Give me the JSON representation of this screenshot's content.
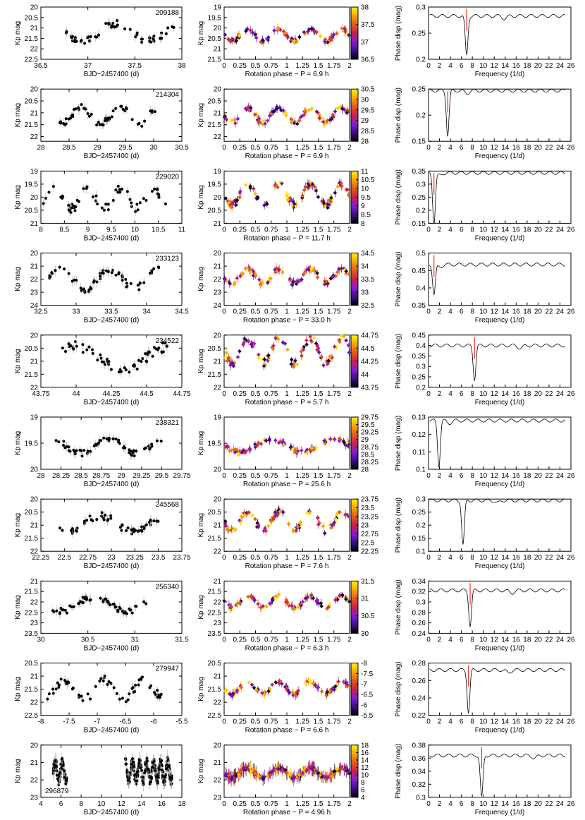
{
  "figure": {
    "colorbar_gradient": [
      "#000000",
      "#3b0f8c",
      "#8a1ad6",
      "#c8214a",
      "#e35b1a",
      "#f7a600",
      "#fff200"
    ],
    "panel_colors": {
      "curve": "#000000",
      "marker_line": "#ff0000",
      "dot": "#000000",
      "errorbar": "#aaaaaa"
    }
  },
  "chart_data": [
    {
      "type": "scatter",
      "label": "209188",
      "lc": {
        "xlabel": "BJD−2457400 (d)",
        "ylabel": "Kp mag",
        "xlim": [
          36.5,
          38
        ],
        "ylim": [
          22.5,
          20
        ],
        "xticks": [
          "36.5",
          "37",
          "37.5",
          "38"
        ],
        "yticks": [
          "20",
          "20.5",
          "21",
          "21.5",
          "22",
          "22.5"
        ],
        "xrange": [
          36.77,
          37.93
        ],
        "yrange": [
          20.6,
          21.8
        ]
      },
      "phase": {
        "xlabel": "Rotation phase − P = 6.9 h",
        "ylabel": "Kp mag",
        "ylim": [
          21.5,
          19
        ],
        "yticks": [
          "19",
          "19.5",
          "20",
          "20.5",
          "21",
          "21.5"
        ],
        "cbar": [
          "36.5",
          "37",
          "37.5",
          "38"
        ],
        "base": 20.35,
        "amp": 0.35
      },
      "pg": {
        "xlabel": "Frequency (1/d)",
        "ylabel": "Phase disp (mag)",
        "ylim": [
          0.2,
          0.3
        ],
        "yticks": [
          "0.2",
          "0.25",
          "0.3"
        ],
        "base": 0.283,
        "dip": 6.95,
        "depth": 0.075,
        "marker": 6.95
      }
    },
    {
      "type": "scatter",
      "label": "214304",
      "lc": {
        "xlabel": "BJD−2457400 (d)",
        "ylabel": "Kp mag",
        "xlim": [
          28,
          30.5
        ],
        "ylim": [
          22.2,
          20
        ],
        "xticks": [
          "28",
          "28.5",
          "29",
          "29.5",
          "30",
          "30.5"
        ],
        "yticks": [
          "20",
          "20.5",
          "21",
          "21.5",
          "22"
        ],
        "xrange": [
          28.3,
          30.05
        ],
        "yrange": [
          20.6,
          21.6
        ]
      },
      "phase": {
        "xlabel": "Rotation phase − P = 6.9 h",
        "ylabel": "Kp mag",
        "ylim": [
          22.2,
          20
        ],
        "yticks": [
          "20",
          "20.5",
          "21",
          "21.5",
          "22"
        ],
        "cbar": [
          "28",
          "28.5",
          "29",
          "29.5",
          "30",
          "30.5"
        ],
        "base": 21.1,
        "amp": 0.4
      },
      "pg": {
        "xlabel": "Frequency (1/d)",
        "ylabel": "Phase disp (mag)",
        "ylim": [
          0.15,
          0.25
        ],
        "yticks": [
          "0.15",
          "0.2",
          "0.25"
        ],
        "base": 0.247,
        "dip": 3.5,
        "depth": 0.085,
        "marker": 3.5
      }
    },
    {
      "type": "scatter",
      "label": "229020",
      "lc": {
        "xlabel": "BJD−2457400 (d)",
        "ylabel": "Kp mag",
        "xlim": [
          8,
          11
        ],
        "ylim": [
          21,
          19
        ],
        "xticks": [
          "8",
          "8.5",
          "9",
          "9.5",
          "10",
          "10.5",
          "11"
        ],
        "yticks": [
          "19",
          "19.5",
          "20",
          "20.5",
          "21"
        ],
        "xrange": [
          8.0,
          10.7
        ],
        "yrange": [
          19.5,
          20.6
        ]
      },
      "phase": {
        "xlabel": "Rotation phase − P = 11.7 h",
        "ylabel": "Kp mag",
        "ylim": [
          21,
          19
        ],
        "yticks": [
          "19",
          "19.5",
          "20",
          "20.5",
          "21"
        ],
        "cbar": [
          "8",
          "8.5",
          "9",
          "9.5",
          "10",
          "10.5",
          "11"
        ],
        "base": 19.9,
        "amp": 0.5
      },
      "pg": {
        "xlabel": "Frequency (1/d)",
        "ylabel": "Phase disp (mag)",
        "ylim": [
          0.15,
          0.35
        ],
        "yticks": [
          "0.15",
          "0.2",
          "0.25",
          "0.3",
          "0.35"
        ],
        "base": 0.343,
        "dip": 1.0,
        "depth": 0.19,
        "marker": 1.0
      }
    },
    {
      "type": "scatter",
      "label": "233123",
      "lc": {
        "xlabel": "BJD−2457400 (d)",
        "ylabel": "Kp mag",
        "xlim": [
          32.5,
          34.5
        ],
        "ylim": [
          24,
          20
        ],
        "xticks": [
          "32.5",
          "33",
          "33.5",
          "34",
          "34.5"
        ],
        "yticks": [
          "20",
          "21",
          "22",
          "23",
          "24"
        ],
        "xrange": [
          32.6,
          34.2
        ],
        "yrange": [
          21.0,
          23.0
        ]
      },
      "phase": {
        "xlabel": "Rotation phase − P = 33.0 h",
        "ylabel": "Kp mag",
        "ylim": [
          24,
          20
        ],
        "yticks": [
          "20",
          "21",
          "22",
          "23",
          "24"
        ],
        "cbar": [
          "32.5",
          "33",
          "33.5",
          "34",
          "34.5"
        ],
        "base": 21.8,
        "amp": 0.7
      },
      "pg": {
        "xlabel": "Frequency (1/d)",
        "ylabel": "Phase disp (mag)",
        "ylim": [
          0.35,
          0.5
        ],
        "yticks": [
          "0.35",
          "0.4",
          "0.45",
          "0.5"
        ],
        "base": 0.467,
        "dip": 1.0,
        "depth": 0.085,
        "marker": 1.0
      }
    },
    {
      "type": "scatter",
      "label": "234522",
      "lc": {
        "xlabel": "BJD−2457400 (d)",
        "ylabel": "Kp mag",
        "xlim": [
          43.75,
          44.75
        ],
        "ylim": [
          22,
          20
        ],
        "xticks": [
          "43.75",
          "44",
          "44.25",
          "44.5",
          "44.75"
        ],
        "yticks": [
          "20",
          "20.5",
          "21",
          "21.5",
          "22"
        ],
        "xrange": [
          43.9,
          44.65
        ],
        "yrange": [
          20.2,
          21.5
        ]
      },
      "phase": {
        "xlabel": "Rotation phase − P = 5.7 h",
        "ylabel": "Kp mag",
        "ylim": [
          22,
          20
        ],
        "yticks": [
          "20",
          "20.5",
          "21",
          "21.5",
          "22"
        ],
        "cbar": [
          "43.75",
          "44",
          "44.25",
          "44.5",
          "44.75"
        ],
        "base": 20.6,
        "amp": 0.6
      },
      "pg": {
        "xlabel": "Frequency (1/d)",
        "ylabel": "Phase disp (mag)",
        "ylim": [
          0.2,
          0.45
        ],
        "yticks": [
          "0.2",
          "0.25",
          "0.3",
          "0.35",
          "0.4",
          "0.45"
        ],
        "base": 0.4,
        "dip": 8.4,
        "depth": 0.16,
        "marker": 8.4
      }
    },
    {
      "type": "scatter",
      "label": "238321",
      "lc": {
        "xlabel": "BJD−2457400 (d)",
        "ylabel": "Kp mag",
        "xlim": [
          28,
          29.75
        ],
        "ylim": [
          20,
          19
        ],
        "xticks": [
          "28",
          "28.25",
          "28.5",
          "28.75",
          "29",
          "29.25",
          "29.5",
          "29.75"
        ],
        "yticks": [
          "19",
          "19.5",
          "20"
        ],
        "xrange": [
          28.17,
          29.5
        ],
        "yrange": [
          19.35,
          19.75
        ]
      },
      "phase": {
        "xlabel": "Rotation phase − P = 25.6 h",
        "ylabel": "Kp mag",
        "ylim": [
          20,
          19
        ],
        "yticks": [
          "19",
          "19.5",
          "20"
        ],
        "cbar": [
          "28",
          "28.25",
          "28.5",
          "28.75",
          "29",
          "29.25",
          "29.5",
          "29.75"
        ],
        "base": 19.55,
        "amp": 0.15
      },
      "pg": {
        "xlabel": "Frequency (1/d)",
        "ylabel": "Phase disp (mag)",
        "ylim": [
          0.1,
          0.13
        ],
        "yticks": [
          "0.1",
          "0.11",
          "0.12",
          "0.13"
        ],
        "base": 0.128,
        "dip": 1.9,
        "depth": 0.026,
        "marker": null
      }
    },
    {
      "type": "scatter",
      "label": "245568",
      "lc": {
        "xlabel": "BJD−2457400 (d)",
        "ylabel": "Kp mag",
        "xlim": [
          22.25,
          23.75
        ],
        "ylim": [
          22,
          20
        ],
        "xticks": [
          "22.25",
          "22.5",
          "22.75",
          "23",
          "23.25",
          "23.5",
          "23.75"
        ],
        "yticks": [
          "20",
          "20.5",
          "21",
          "21.5",
          "22"
        ],
        "xrange": [
          22.33,
          23.5
        ],
        "yrange": [
          20.5,
          21.4
        ]
      },
      "phase": {
        "xlabel": "Rotation phase − P = 7.6 h",
        "ylabel": "Kp mag",
        "ylim": [
          22,
          20
        ],
        "yticks": [
          "20",
          "20.5",
          "21",
          "21.5",
          "22"
        ],
        "cbar": [
          "22.25",
          "22.5",
          "22.75",
          "23",
          "23.25",
          "23.5",
          "23.75"
        ],
        "base": 20.85,
        "amp": 0.45
      },
      "pg": {
        "xlabel": "Frequency (1/d)",
        "ylabel": "Phase disp (mag)",
        "ylim": [
          0.1,
          0.3
        ],
        "yticks": [
          "0.1",
          "0.15",
          "0.2",
          "0.25",
          "0.3"
        ],
        "base": 0.295,
        "dip": 6.3,
        "depth": 0.17,
        "marker": null
      }
    },
    {
      "type": "scatter",
      "label": "256340",
      "lc": {
        "xlabel": "BJD−2457400 (d)",
        "ylabel": "Kp mag",
        "xlim": [
          30,
          31.5
        ],
        "ylim": [
          23.5,
          21
        ],
        "xticks": [
          "30",
          "30.5",
          "31",
          "31.5"
        ],
        "yticks": [
          "21",
          "21.5",
          "22",
          "22.5",
          "23",
          "23.5"
        ],
        "xrange": [
          30.12,
          31.12
        ],
        "yrange": [
          21.6,
          22.6
        ]
      },
      "phase": {
        "xlabel": "Rotation phase − P = 6.3 h",
        "ylabel": "Kp mag",
        "ylim": [
          23.5,
          21
        ],
        "yticks": [
          "21",
          "21.5",
          "22",
          "22.5",
          "23",
          "23.5"
        ],
        "cbar": [
          "30",
          "30.5",
          "31",
          "31.5"
        ],
        "base": 22.0,
        "amp": 0.35
      },
      "pg": {
        "xlabel": "Frequency (1/d)",
        "ylabel": "Phase disp (mag)",
        "ylim": [
          0.24,
          0.34
        ],
        "yticks": [
          "0.24",
          "0.26",
          "0.28",
          "0.3",
          "0.32",
          "0.34"
        ],
        "base": 0.322,
        "dip": 7.6,
        "depth": 0.067,
        "marker": 7.6
      }
    },
    {
      "type": "scatter",
      "label": "279947",
      "lc": {
        "xlabel": "BJD−2457400 (d)",
        "ylabel": "Kp mag",
        "xlim": [
          -8,
          -5.5
        ],
        "ylim": [
          22.5,
          20.5
        ],
        "xticks": [
          "-8",
          "-7.5",
          "-7",
          "-6.5",
          "-6",
          "-5.5"
        ],
        "yticks": [
          "20.5",
          "21",
          "21.5",
          "22",
          "22.5"
        ],
        "xrange": [
          -7.9,
          -5.8
        ],
        "yrange": [
          21.0,
          22.0
        ]
      },
      "phase": {
        "xlabel": "Rotation phase − P = 6.6 h",
        "ylabel": "Kp mag",
        "ylim": [
          22.5,
          20.5
        ],
        "yticks": [
          "20.5",
          "21",
          "21.5",
          "22",
          "22.5"
        ],
        "cbar": [
          "-5.5",
          "-6",
          "-6.5",
          "-7",
          "-7.5",
          "-8"
        ],
        "base": 21.45,
        "amp": 0.3
      },
      "pg": {
        "xlabel": "Frequency (1/d)",
        "ylabel": "Phase disp (mag)",
        "ylim": [
          0.22,
          0.28
        ],
        "yticks": [
          "0.22",
          "0.24",
          "0.26",
          "0.28"
        ],
        "base": 0.272,
        "dip": 7.3,
        "depth": 0.048,
        "marker": 7.3
      }
    },
    {
      "type": "scatter",
      "label": "296879",
      "lc": {
        "xlabel": "BJD−2457400 (d)",
        "ylabel": "Kp mag",
        "xlim": [
          4,
          18
        ],
        "ylim": [
          23,
          20
        ],
        "xticks": [
          "4",
          "6",
          "8",
          "10",
          "12",
          "14",
          "16",
          "18"
        ],
        "yticks": [
          "20",
          "21",
          "22",
          "23"
        ],
        "xrange": [
          5.2,
          17.0
        ],
        "yrange": [
          20.7,
          22.3
        ],
        "gap": [
          6.6,
          12.4
        ]
      },
      "phase": {
        "xlabel": "Rotation phase − P = 4.96 h",
        "ylabel": "Kp mag",
        "ylim": [
          23,
          20
        ],
        "yticks": [
          "20",
          "21",
          "22",
          "23"
        ],
        "cbar": [
          "4",
          "6",
          "8",
          "10",
          "12",
          "14",
          "16",
          "18"
        ],
        "base": 21.6,
        "amp": 0.35
      },
      "pg": {
        "xlabel": "Frequency (1/d)",
        "ylabel": "Phase disp (mag)",
        "ylim": [
          0.3,
          0.38
        ],
        "yticks": [
          "0.3",
          "0.32",
          "0.34",
          "0.36",
          "0.38"
        ],
        "base": 0.364,
        "dip": 9.7,
        "depth": 0.064,
        "marker": 9.7
      }
    }
  ]
}
